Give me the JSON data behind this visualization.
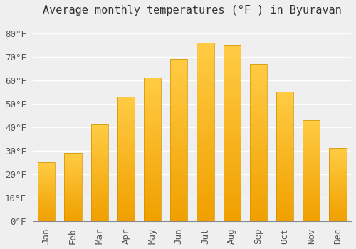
{
  "title": "Average monthly temperatures (°F ) in Byuravan",
  "months": [
    "Jan",
    "Feb",
    "Mar",
    "Apr",
    "May",
    "Jun",
    "Jul",
    "Aug",
    "Sep",
    "Oct",
    "Nov",
    "Dec"
  ],
  "values": [
    25,
    29,
    41,
    53,
    61,
    69,
    76,
    75,
    67,
    55,
    43,
    31
  ],
  "bar_color_top": "#FFCC44",
  "bar_color_bottom": "#F0A000",
  "bar_edge_color": "#D09000",
  "background_color": "#EFEFEF",
  "grid_color": "#FFFFFF",
  "ylim": [
    0,
    85
  ],
  "yticks": [
    0,
    10,
    20,
    30,
    40,
    50,
    60,
    70,
    80
  ],
  "ylabel_suffix": "°F",
  "title_fontsize": 11,
  "tick_fontsize": 9,
  "font_family": "monospace"
}
